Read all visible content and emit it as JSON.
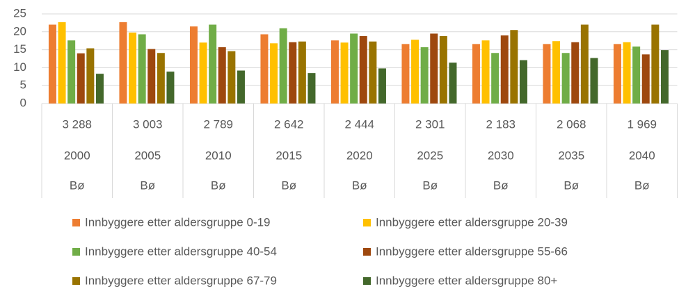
{
  "chart_data": {
    "type": "bar",
    "categories": [
      "2000",
      "2005",
      "2010",
      "2015",
      "2020",
      "2025",
      "2030",
      "2035",
      "2040"
    ],
    "totals": [
      "3 288",
      "3 003",
      "2 789",
      "2 642",
      "2 444",
      "2 301",
      "2 183",
      "2 068",
      "1 969"
    ],
    "region": [
      "Bø",
      "Bø",
      "Bø",
      "Bø",
      "Bø",
      "Bø",
      "Bø",
      "Bø",
      "Bø"
    ],
    "series": [
      {
        "name": "Innbyggere etter aldersgruppe 0-19",
        "color": "#ED7D31",
        "values": [
          22,
          22.7,
          21.5,
          19.3,
          17.6,
          16.6,
          16.6,
          16.6,
          16.6
        ]
      },
      {
        "name": "Innbyggere etter aldersgruppe 20-39",
        "color": "#FFC000",
        "values": [
          22.7,
          19.8,
          17,
          16.8,
          17,
          17.8,
          17.6,
          17.4,
          17.1
        ]
      },
      {
        "name": "Innbyggere etter aldersgruppe 40-54",
        "color": "#70AD47",
        "values": [
          17.6,
          19.3,
          22,
          21,
          19.5,
          15.7,
          14.1,
          14.1,
          15.9
        ]
      },
      {
        "name": "Innbyggere etter aldersgruppe 55-66",
        "color": "#9E480E",
        "values": [
          14,
          15.2,
          15.7,
          17.1,
          18.8,
          19.5,
          19,
          17.1,
          13.7
        ]
      },
      {
        "name": "Innbyggere etter aldersgruppe 67-79",
        "color": "#997300",
        "values": [
          15.4,
          14.1,
          14.6,
          17.3,
          17.3,
          18.8,
          20.5,
          22,
          22
        ]
      },
      {
        "name": "Innbyggere etter aldersgruppe 80+",
        "color": "#43682B",
        "values": [
          8.3,
          8.9,
          9.2,
          8.5,
          9.8,
          11.4,
          12.1,
          12.7,
          14.9
        ]
      }
    ],
    "ylim": [
      0,
      25
    ],
    "yticks": [
      0,
      5,
      10,
      15,
      20,
      25
    ],
    "grid": true,
    "legend": "bottom"
  }
}
